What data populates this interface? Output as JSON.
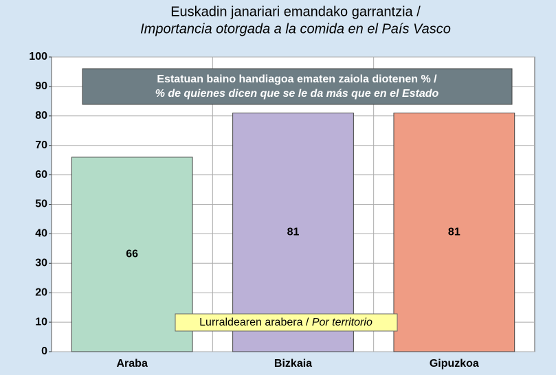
{
  "chart_data": {
    "type": "bar",
    "title": "Euskadin janariari emandako garrantzia /",
    "subtitle": "Importancia otorgada a la comida en el País Vasco",
    "annotations": [
      "Estatuan baino handiagoa ematen zaiola diotenen % /",
      "% de quienes dicen que se le da más que en el Estado"
    ],
    "legend_note": [
      "Lurraldearen arabera /",
      "Por territorio"
    ],
    "categories": [
      "Araba",
      "Bizkaia",
      "Gipuzkoa"
    ],
    "values": [
      66,
      81,
      81
    ],
    "colors": [
      "#b3dcc8",
      "#bbb1d7",
      "#ef9c84"
    ],
    "ylim": [
      0,
      100
    ],
    "yticks": [
      0,
      10,
      20,
      30,
      40,
      50,
      60,
      70,
      80,
      90,
      100
    ],
    "grid": true
  }
}
